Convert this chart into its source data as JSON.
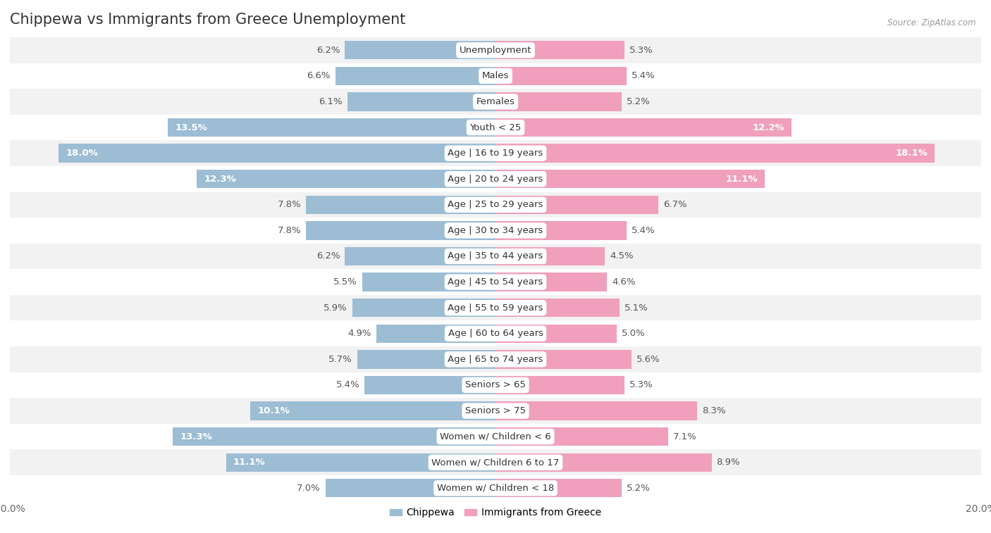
{
  "title": "Chippewa vs Immigrants from Greece Unemployment",
  "source": "Source: ZipAtlas.com",
  "categories": [
    "Unemployment",
    "Males",
    "Females",
    "Youth < 25",
    "Age | 16 to 19 years",
    "Age | 20 to 24 years",
    "Age | 25 to 29 years",
    "Age | 30 to 34 years",
    "Age | 35 to 44 years",
    "Age | 45 to 54 years",
    "Age | 55 to 59 years",
    "Age | 60 to 64 years",
    "Age | 65 to 74 years",
    "Seniors > 65",
    "Seniors > 75",
    "Women w/ Children < 6",
    "Women w/ Children 6 to 17",
    "Women w/ Children < 18"
  ],
  "chippewa": [
    6.2,
    6.6,
    6.1,
    13.5,
    18.0,
    12.3,
    7.8,
    7.8,
    6.2,
    5.5,
    5.9,
    4.9,
    5.7,
    5.4,
    10.1,
    13.3,
    11.1,
    7.0
  ],
  "immigrants": [
    5.3,
    5.4,
    5.2,
    12.2,
    18.1,
    11.1,
    6.7,
    5.4,
    4.5,
    4.6,
    5.1,
    5.0,
    5.6,
    5.3,
    8.3,
    7.1,
    8.9,
    5.2
  ],
  "chippewa_color": "#9dbdd4",
  "immigrants_color": "#f0a0bc",
  "x_max": 20.0,
  "bg_colors": [
    "#f2f2f2",
    "#ffffff"
  ],
  "title_fontsize": 15,
  "label_fontsize": 9.5,
  "tick_fontsize": 10
}
